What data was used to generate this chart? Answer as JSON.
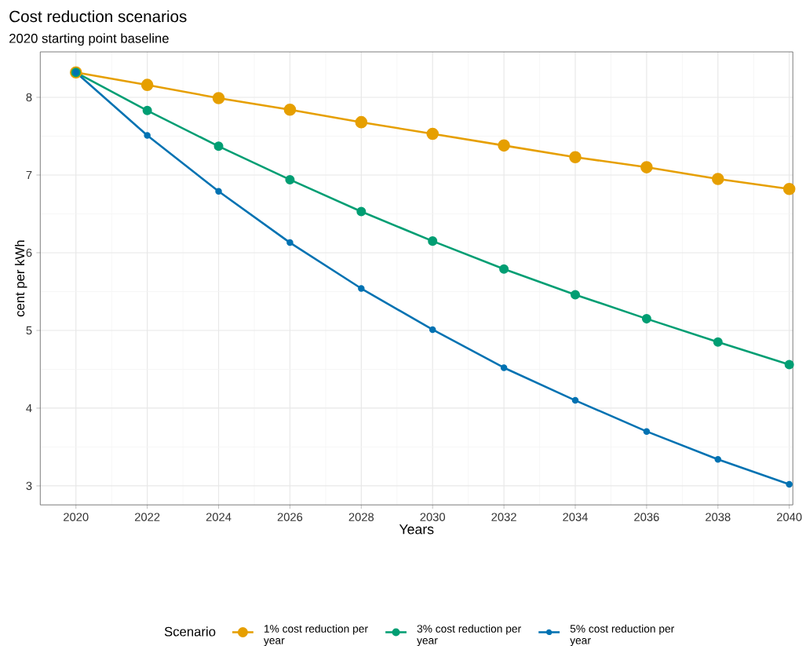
{
  "chart_data": {
    "type": "line",
    "title": "Cost reduction scenarios",
    "subtitle": "2020 starting point baseline",
    "xlabel": "Years",
    "ylabel": "cent per kWh",
    "legend_title": "Scenario",
    "x": [
      2020,
      2022,
      2024,
      2026,
      2028,
      2030,
      2032,
      2034,
      2036,
      2038,
      2040
    ],
    "series": [
      {
        "name": "1% cost reduction per year",
        "color": "#e69f00",
        "values": [
          8.32,
          8.16,
          7.99,
          7.84,
          7.68,
          7.53,
          7.38,
          7.23,
          7.1,
          6.95,
          6.82
        ]
      },
      {
        "name": "3% cost reduction per year",
        "color": "#009e73",
        "values": [
          8.32,
          7.83,
          7.37,
          6.94,
          6.53,
          6.15,
          5.79,
          5.46,
          5.15,
          4.85,
          4.56
        ]
      },
      {
        "name": "5% cost reduction per year",
        "color": "#0072b2",
        "values": [
          8.32,
          7.51,
          6.79,
          6.13,
          5.54,
          5.01,
          4.52,
          4.1,
          3.7,
          3.34,
          3.02
        ]
      }
    ],
    "xlim": [
      2019,
      2040.1
    ],
    "ylim": [
      2.755,
      8.585
    ],
    "xticks": [
      2020,
      2022,
      2024,
      2026,
      2028,
      2030,
      2032,
      2034,
      2036,
      2038,
      2040
    ],
    "yticks": [
      3,
      4,
      5,
      6,
      7,
      8
    ],
    "grid": true,
    "legend": "bottom",
    "marker": "circle",
    "line_style": "solid"
  }
}
